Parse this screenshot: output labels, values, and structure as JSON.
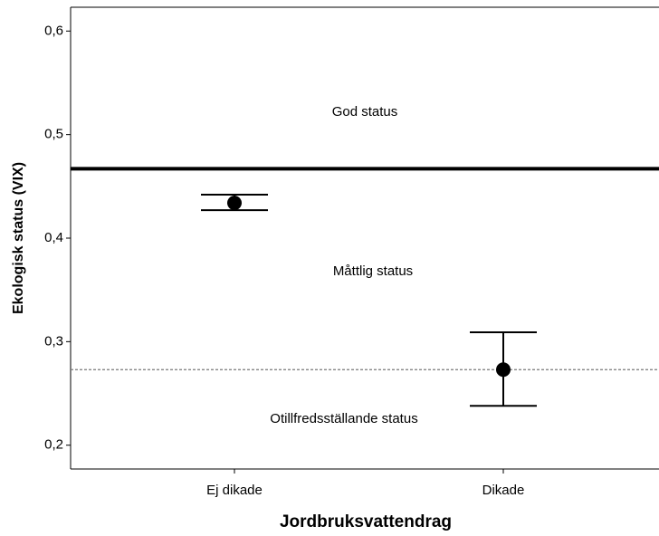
{
  "chart_data": {
    "type": "errorbar",
    "x_label": "Jordbruksvattendrag",
    "y_label": "Ekologisk status (VIX)",
    "categories": [
      "Ej dikade",
      "Dikade"
    ],
    "series": [
      {
        "color": "#000000",
        "values": [
          0.434,
          0.273
        ],
        "lower": [
          0.427,
          0.238
        ],
        "upper": [
          0.442,
          0.309
        ]
      }
    ],
    "ylim": [
      0.177,
      0.623
    ],
    "yticks": [
      {
        "value": 0.2,
        "label": "0,2"
      },
      {
        "value": 0.3,
        "label": "0,3"
      },
      {
        "value": 0.4,
        "label": "0,4"
      },
      {
        "value": 0.5,
        "label": "0,5"
      },
      {
        "value": 0.6,
        "label": "0,6"
      }
    ],
    "reference_lines": [
      {
        "value": 0.467,
        "style": "solid"
      },
      {
        "value": 0.273,
        "style": "dashed"
      }
    ],
    "annotations": [
      "God status",
      "Måttlig status",
      "Otillfredsställande status"
    ]
  }
}
